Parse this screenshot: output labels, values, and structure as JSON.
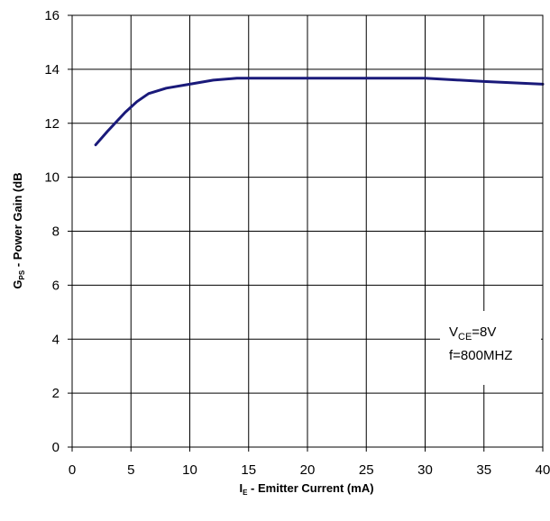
{
  "chart_data": {
    "type": "line",
    "x_axis": {
      "label_main": "I",
      "label_sub": "E",
      "label_rest": " - Emitter Current (mA)",
      "min": 0,
      "max": 40,
      "ticks": [
        "0",
        "5",
        "10",
        "15",
        "20",
        "25",
        "30",
        "35",
        "40"
      ]
    },
    "y_axis": {
      "label_main": "G",
      "label_sub": "PS",
      "label_rest": " - Power Gain (dB",
      "min": 0,
      "max": 16,
      "ticks": [
        "0",
        "2",
        "4",
        "6",
        "8",
        "10",
        "12",
        "14",
        "16"
      ]
    },
    "grid": true,
    "series": [
      {
        "color": "#1a1a7a",
        "points": [
          [
            2,
            11.2
          ],
          [
            3,
            11.7
          ],
          [
            4.5,
            12.4
          ],
          [
            5.5,
            12.8
          ],
          [
            6.5,
            13.1
          ],
          [
            8,
            13.3
          ],
          [
            10,
            13.45
          ],
          [
            12,
            13.6
          ],
          [
            14,
            13.67
          ],
          [
            20,
            13.67
          ],
          [
            25,
            13.67
          ],
          [
            30,
            13.67
          ],
          [
            35,
            13.55
          ],
          [
            40,
            13.45
          ]
        ]
      }
    ],
    "annotation": {
      "line1_main": "V",
      "line1_sub": "CE",
      "line1_rest": "=8V",
      "line2": "f=800MHZ"
    }
  }
}
